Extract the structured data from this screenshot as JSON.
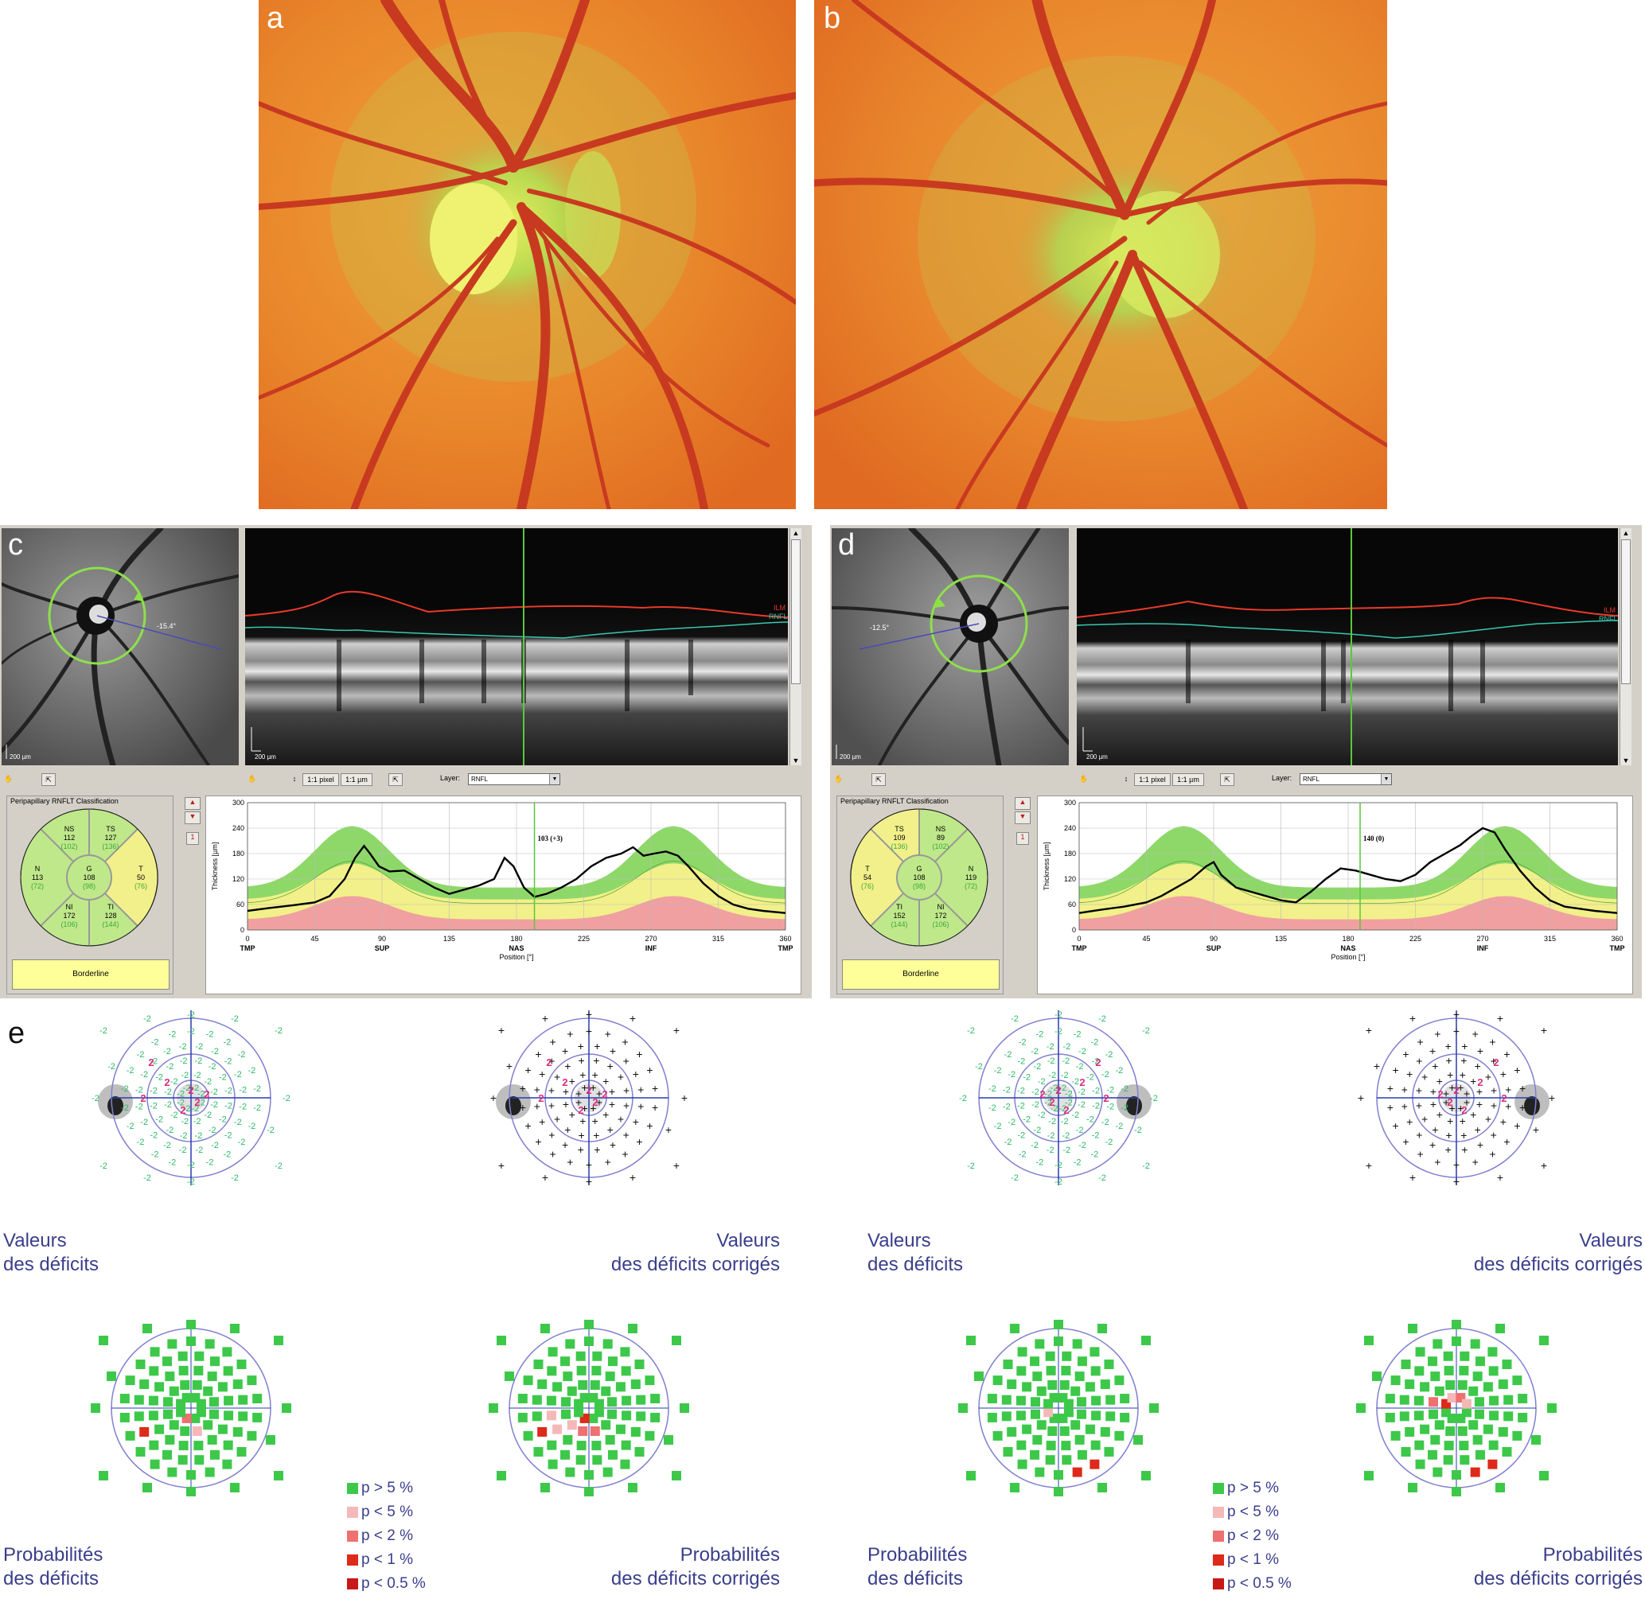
{
  "panels": {
    "a": "a",
    "b": "b",
    "c": "c",
    "d": "d",
    "e": "e"
  },
  "oct_c": {
    "angle": "-15.4°",
    "scale_slo": "200 µm",
    "scale_bscan": "200 µm",
    "ilm": "ILM",
    "rnfl": "RNFL",
    "btn_pixel": "1:1 pixel",
    "btn_um": "1:1 µm",
    "layer_label": "Layer:",
    "layer_value": "RNFL",
    "classif_title": "Peripapillary RNFLT Classification",
    "sectors": {
      "top_left": {
        "name": "NS",
        "value": "112",
        "ref": "(102)"
      },
      "top_right": {
        "name": "TS",
        "value": "127",
        "ref": "(136)"
      },
      "left": {
        "name": "N",
        "value": "113",
        "ref": "(72)"
      },
      "center": {
        "name": "G",
        "value": "108",
        "ref": "(98)"
      },
      "right": {
        "name": "T",
        "value": "50",
        "ref": "(76)"
      },
      "bottom_left": {
        "name": "NI",
        "value": "172",
        "ref": "(106)"
      },
      "bottom_right": {
        "name": "TI",
        "value": "128",
        "ref": "(144)"
      }
    },
    "classification": "Borderline",
    "page_number": "1",
    "cursor_readout": "103 (+3)"
  },
  "oct_d": {
    "angle": "-12.5°",
    "scale_slo": "200 µm",
    "scale_bscan": "200 µm",
    "ilm": "ILM",
    "rnfl": "RNFL",
    "btn_pixel": "1:1 pixel",
    "btn_um": "1:1 µm",
    "layer_label": "Layer:",
    "layer_value": "RNFL",
    "classif_title": "Peripapillary RNFLT Classification",
    "sectors": {
      "top_left": {
        "name": "TS",
        "value": "109",
        "ref": "(136)"
      },
      "top_right": {
        "name": "NS",
        "value": "89",
        "ref": "(102)"
      },
      "left": {
        "name": "T",
        "value": "54",
        "ref": "(76)"
      },
      "center": {
        "name": "G",
        "value": "108",
        "ref": "(98)"
      },
      "right": {
        "name": "N",
        "value": "119",
        "ref": "(72)"
      },
      "bottom_left": {
        "name": "TI",
        "value": "152",
        "ref": "(144)"
      },
      "bottom_right": {
        "name": "NI",
        "value": "172",
        "ref": "(106)"
      }
    },
    "classification": "Borderline",
    "page_number": "1",
    "cursor_readout": "140 (0)"
  },
  "chart_data": [
    {
      "type": "area",
      "panel": "c",
      "xlabel": "Position [°]",
      "ylabel": "Thickness [µm]",
      "xlim": [
        0,
        360
      ],
      "ylim": [
        0,
        300
      ],
      "xticks": [
        0,
        45,
        90,
        135,
        180,
        225,
        270,
        315,
        360
      ],
      "yticks": [
        0,
        60,
        120,
        180,
        240,
        300
      ],
      "region_labels": [
        "TMP",
        "SUP",
        "NAS",
        "INF",
        "TMP"
      ],
      "cursor_x": 192,
      "series": [
        {
          "values_x": [
            0,
            15,
            30,
            45,
            55,
            65,
            72,
            78,
            82,
            88,
            95,
            105,
            115,
            125,
            135,
            145,
            155,
            165,
            172,
            178,
            185,
            192,
            200,
            210,
            220,
            230,
            240,
            250,
            258,
            265,
            272,
            280,
            288,
            295,
            305,
            315,
            325,
            335,
            345,
            360
          ],
          "values_y": [
            45,
            52,
            58,
            65,
            80,
            120,
            170,
            198,
            180,
            150,
            138,
            140,
            120,
            100,
            85,
            95,
            105,
            120,
            170,
            150,
            100,
            78,
            85,
            100,
            120,
            150,
            170,
            180,
            195,
            175,
            180,
            185,
            175,
            150,
            110,
            80,
            60,
            50,
            45,
            40
          ]
        }
      ]
    },
    {
      "type": "area",
      "panel": "d",
      "xlabel": "Position [°]",
      "ylabel": "Thickness [µm]",
      "xlim": [
        0,
        360
      ],
      "ylim": [
        0,
        300
      ],
      "xticks": [
        0,
        45,
        90,
        135,
        180,
        225,
        270,
        315,
        360
      ],
      "yticks": [
        0,
        60,
        120,
        180,
        240,
        300
      ],
      "region_labels": [
        "TMP",
        "SUP",
        "NAS",
        "INF",
        "TMP"
      ],
      "cursor_x": 188,
      "series": [
        {
          "values_x": [
            0,
            15,
            30,
            45,
            55,
            65,
            75,
            85,
            90,
            95,
            105,
            120,
            135,
            145,
            155,
            165,
            175,
            185,
            195,
            205,
            215,
            225,
            235,
            245,
            255,
            262,
            270,
            278,
            285,
            295,
            305,
            315,
            325,
            335,
            345,
            360
          ],
          "values_y": [
            40,
            48,
            55,
            65,
            80,
            100,
            120,
            150,
            160,
            130,
            100,
            85,
            70,
            65,
            90,
            120,
            145,
            140,
            130,
            120,
            115,
            130,
            160,
            180,
            200,
            220,
            240,
            230,
            190,
            140,
            100,
            70,
            55,
            50,
            45,
            40
          ]
        }
      ]
    }
  ],
  "perimetry": {
    "left_labels": {
      "deficits_1": "Valeurs",
      "deficits_2": "des déficits",
      "corrected_1": "Valeurs",
      "corrected_2": "des déficits corrigés",
      "prob_1": "Probabilités",
      "prob_2": "des déficits",
      "prob_corr_1": "Probabilités",
      "prob_corr_2": "des déficits corrigés"
    },
    "right_labels": {
      "deficits_1": "Valeurs",
      "deficits_2": "des déficits",
      "corrected_1": "Valeurs",
      "corrected_2": "des déficits corrigés",
      "prob_1": "Probabilités",
      "prob_2": "des déficits",
      "prob_corr_1": "Probabilités",
      "prob_corr_2": "des déficits corrigés"
    },
    "legend": [
      {
        "label": "p > 5 %",
        "color": "#3dc84a"
      },
      {
        "label": "p < 5 %",
        "color": "#f5b8b8"
      },
      {
        "label": "p < 2 %",
        "color": "#ee7070"
      },
      {
        "label": "p < 1 %",
        "color": "#dd2a1a"
      },
      {
        "label": "p < 0.5 %",
        "color": "#c81818"
      }
    ],
    "deficit_value": "-2",
    "pos_value": "2"
  },
  "colors": {
    "ilm": "#e83a2a",
    "rnfl": "#38c8b0",
    "normal_band": "#8ed86a",
    "borderline_band": "#f2f08a",
    "abnormal_band": "#f0a0a0",
    "perimetry_axis": "#2a3cb0",
    "perimetry_circle": "#8080d0"
  }
}
